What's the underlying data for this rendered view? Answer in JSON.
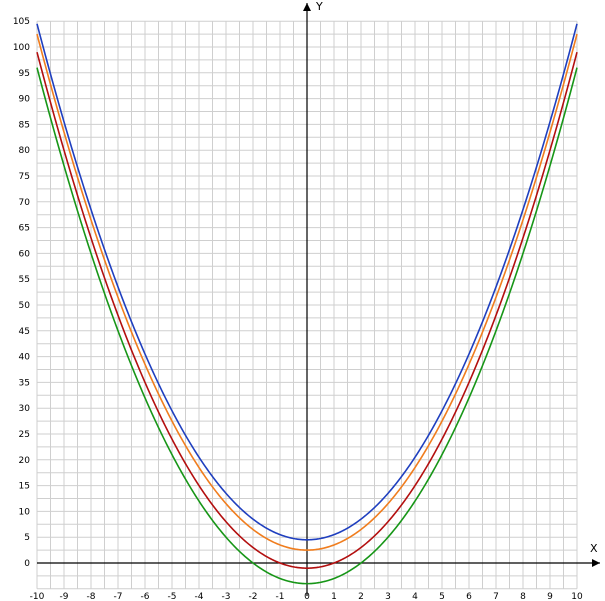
{
  "chart_data": {
    "type": "line",
    "title": "",
    "xlabel": "X",
    "ylabel": "Y",
    "xlim": [
      -10,
      10
    ],
    "ylim": [
      -5,
      105
    ],
    "x_ticks": [
      "-10",
      "-9",
      "-8",
      "-7",
      "-6",
      "-5",
      "-4",
      "-3",
      "-2",
      "-1",
      "0",
      "1",
      "2",
      "3",
      "4",
      "5",
      "6",
      "7",
      "8",
      "9",
      "10"
    ],
    "y_ticks": [
      "0",
      "5",
      "10",
      "15",
      "20",
      "25",
      "30",
      "35",
      "40",
      "45",
      "50",
      "55",
      "60",
      "65",
      "70",
      "75",
      "80",
      "85",
      "90",
      "95",
      "100",
      "105"
    ],
    "grid": true,
    "x": [
      -10,
      -9,
      -8,
      -7,
      -6,
      -5,
      -4,
      -3,
      -2,
      -1,
      0,
      1,
      2,
      3,
      4,
      5,
      6,
      7,
      8,
      9,
      10
    ],
    "series": [
      {
        "color": "#1f3fbf",
        "values": [
          104.5,
          85.5,
          68.5,
          53.5,
          40.5,
          29.5,
          20.5,
          13.5,
          8.5,
          5.5,
          4.5,
          5.5,
          8.5,
          13.5,
          20.5,
          29.5,
          40.5,
          53.5,
          68.5,
          85.5,
          104.5
        ]
      },
      {
        "color": "#f07d1e",
        "values": [
          102.5,
          83.5,
          66.5,
          51.5,
          38.5,
          27.5,
          18.5,
          11.5,
          6.5,
          3.5,
          2.5,
          3.5,
          6.5,
          11.5,
          18.5,
          27.5,
          38.5,
          51.5,
          66.5,
          83.5,
          102.5
        ]
      },
      {
        "color": "#b30f0f",
        "values": [
          99,
          80,
          63,
          48,
          35,
          24,
          15,
          8,
          3,
          0,
          -1,
          0,
          3,
          8,
          15,
          24,
          35,
          48,
          63,
          80,
          99
        ]
      },
      {
        "color": "#179617",
        "values": [
          96,
          77,
          60,
          45,
          32,
          21,
          12,
          5,
          0,
          -3,
          -4,
          -3,
          0,
          5,
          12,
          21,
          32,
          45,
          60,
          77,
          96
        ]
      }
    ]
  }
}
